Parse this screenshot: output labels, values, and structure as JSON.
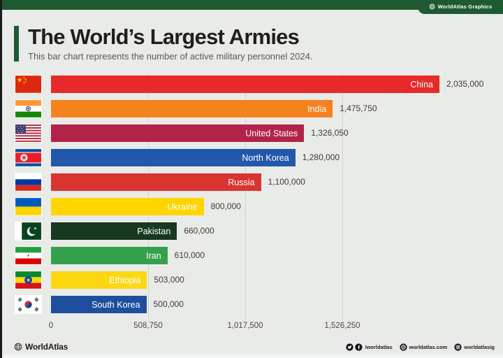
{
  "page": {
    "background": "#e9ebe8",
    "accent_green": "#1e5a31"
  },
  "header": {
    "tab_label": "WorldAtlas Graphics",
    "tab_icon": "globe-icon"
  },
  "title_block": {
    "title": "The World’s Largest Armies",
    "subtitle": "This bar chart  represents the number of active military personnel 2024."
  },
  "chart_data": {
    "type": "bar",
    "orientation": "horizontal",
    "title": "The World’s Largest Armies",
    "subtitle": "This bar chart  represents the number of active military personnel 2024.",
    "xlabel": "",
    "ylabel": "",
    "xlim": [
      0,
      2035000
    ],
    "x_ticks": [
      0,
      508750,
      1017500,
      1526250
    ],
    "x_tick_labels": [
      "0",
      "508,750",
      "1,017,500",
      "1,526,250"
    ],
    "grid": true,
    "categories": [
      "China",
      "India",
      "United States",
      "North Korea",
      "Russia",
      "Ukraine",
      "Pakistan",
      "Iran",
      "Ethiopia",
      "South Korea"
    ],
    "values": [
      2035000,
      1475750,
      1326050,
      1280000,
      1100000,
      800000,
      660000,
      610000,
      503000,
      500000
    ],
    "rows": [
      {
        "country": "China",
        "value": 2035000,
        "value_label": "2,035,000",
        "color": "#e62b2a",
        "flag": "china-flag"
      },
      {
        "country": "India",
        "value": 1475750,
        "value_label": "1,475,750",
        "color": "#f5811f",
        "flag": "india-flag"
      },
      {
        "country": "United States",
        "value": 1326050,
        "value_label": "1,326,050",
        "color": "#b22348",
        "flag": "united-states-flag"
      },
      {
        "country": "North Korea",
        "value": 1280000,
        "value_label": "1,280,000",
        "color": "#2158ab",
        "flag": "north-korea-flag"
      },
      {
        "country": "Russia",
        "value": 1100000,
        "value_label": "1,100,000",
        "color": "#d93430",
        "flag": "russia-flag"
      },
      {
        "country": "Ukraine",
        "value": 800000,
        "value_label": "800,000",
        "color": "#ffd500",
        "flag": "ukraine-flag"
      },
      {
        "country": "Pakistan",
        "value": 660000,
        "value_label": "660,000",
        "color": "#17391f",
        "flag": "pakistan-flag"
      },
      {
        "country": "Iran",
        "value": 610000,
        "value_label": "610,000",
        "color": "#36a14c",
        "flag": "iran-flag"
      },
      {
        "country": "Ethiopia",
        "value": 503000,
        "value_label": "503,000",
        "color": "#fcd813",
        "flag": "ethiopia-flag"
      },
      {
        "country": "South Korea",
        "value": 500000,
        "value_label": "500,000",
        "color": "#1d4f9e",
        "flag": "south-korea-flag"
      }
    ]
  },
  "footer": {
    "brand": "WorldAtlas",
    "brand_icon": "globe-icon",
    "social": [
      {
        "icons": [
          "twitter-icon",
          "facebook-icon"
        ],
        "label": "/worldatlas"
      },
      {
        "icons": [
          "globe-icon"
        ],
        "label": "worldatlas.com"
      },
      {
        "icons": [
          "instagram-icon"
        ],
        "label": "worldatlasig"
      }
    ]
  }
}
